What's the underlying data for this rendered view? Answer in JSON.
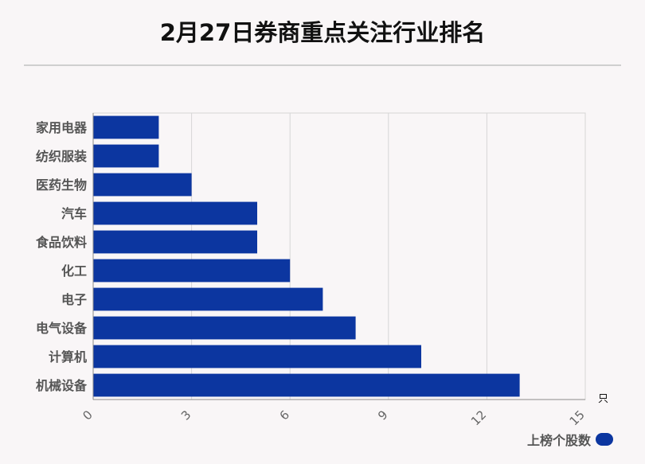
{
  "title": "2月27日券商重点关注行业排名",
  "colors": {
    "bar": "#0c36a0",
    "grid": "#d6d6d6",
    "axis": "#8a8a8a",
    "background": "#f9f6f7"
  },
  "chart_data": {
    "type": "bar",
    "orientation": "horizontal",
    "categories": [
      "家用电器",
      "纺织服装",
      "医药生物",
      "汽车",
      "食品饮料",
      "化工",
      "电子",
      "电气设备",
      "计算机",
      "机械设备"
    ],
    "series": [
      {
        "name": "上榜个股数",
        "values": [
          2,
          2,
          3,
          5,
          5,
          6,
          7,
          8,
          10,
          13
        ]
      }
    ],
    "xlim": [
      0,
      15
    ],
    "x_ticks": [
      0,
      3,
      6,
      9,
      12,
      15
    ],
    "x_unit": "只",
    "grid": true,
    "legend_position": "bottom-right"
  }
}
